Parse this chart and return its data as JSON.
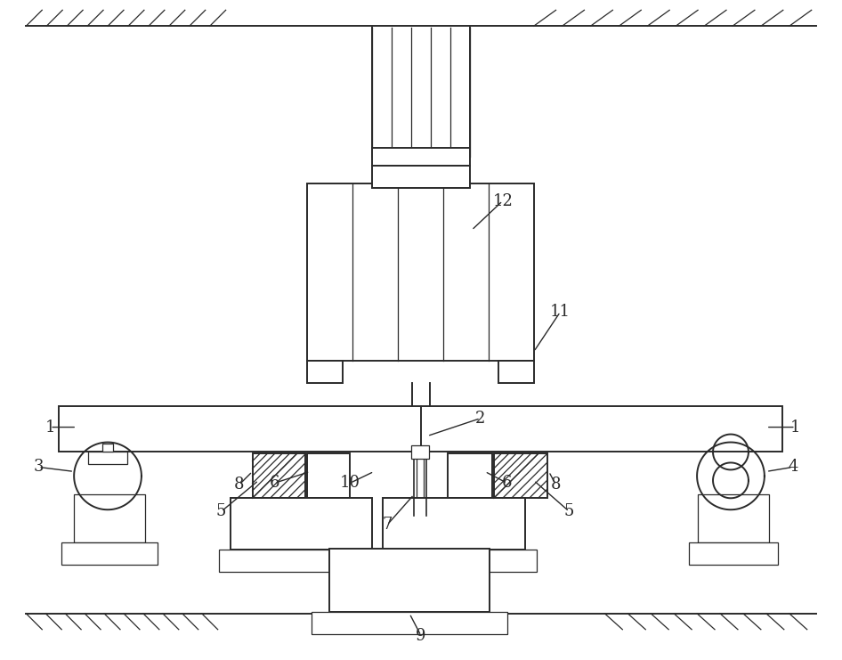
{
  "bg_color": "#ffffff",
  "line_color": "#2a2a2a",
  "lw": 1.4,
  "lw_thin": 0.9,
  "fig_w": 9.46,
  "fig_h": 7.41,
  "fontsize": 13
}
